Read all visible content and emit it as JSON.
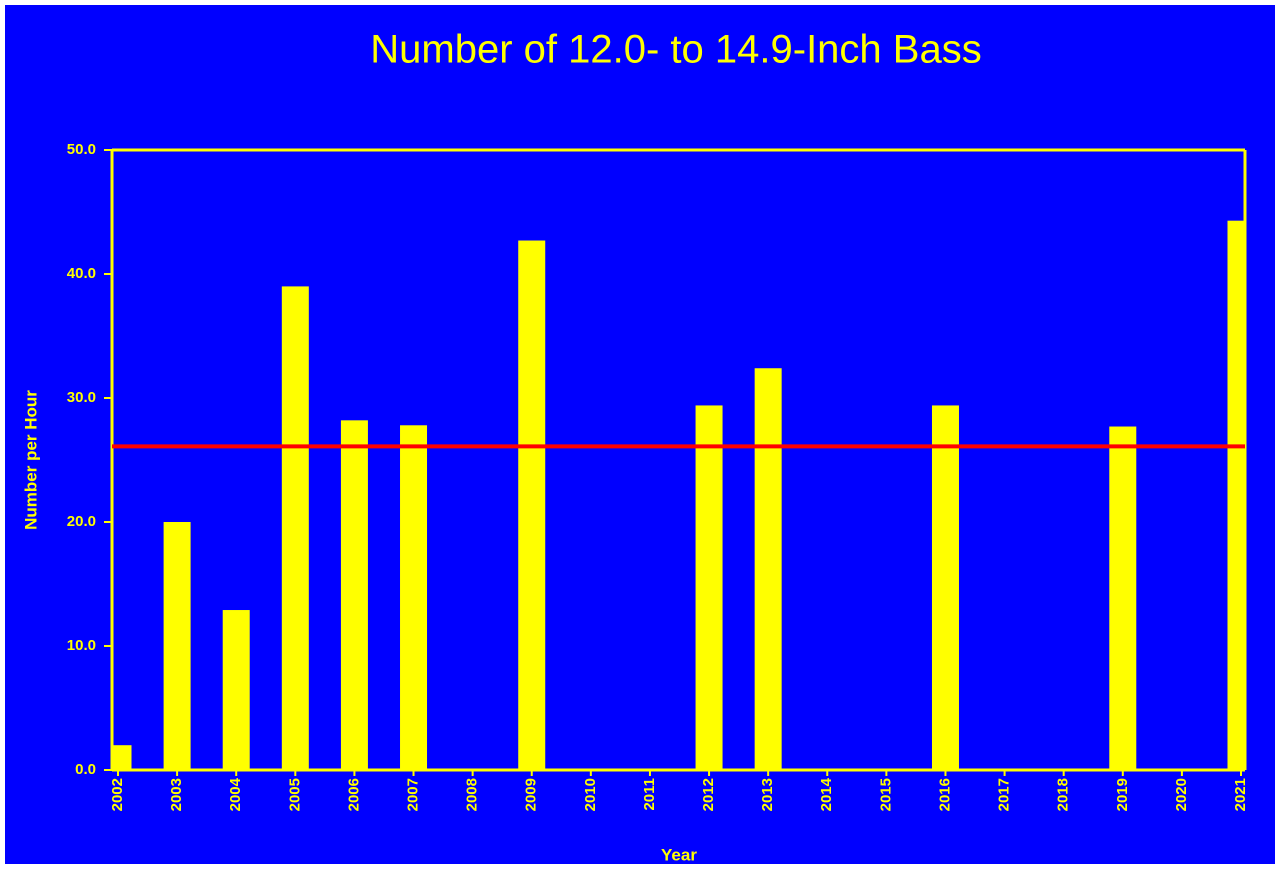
{
  "chart_data": {
    "type": "bar",
    "title": "Number of 12.0- to 14.9-Inch Bass",
    "x_label": "Year",
    "y_label": "Number per Hour",
    "categories": [
      "2002",
      "2003",
      "2004",
      "2005",
      "2006",
      "2007",
      "2008",
      "2009",
      "2010",
      "2011",
      "2012",
      "2013",
      "2014",
      "2015",
      "2016",
      "2017",
      "2018",
      "2019",
      "2020",
      "2021"
    ],
    "values": [
      2.0,
      20.0,
      12.9,
      39.0,
      28.2,
      27.8,
      null,
      42.7,
      null,
      null,
      29.4,
      32.4,
      null,
      null,
      29.4,
      null,
      null,
      27.7,
      null,
      44.3
    ],
    "color": "#ffff00",
    "reference_line": {
      "value": 26.1,
      "color": "#ff0000"
    },
    "ylim": [
      0,
      50
    ],
    "yticks": [
      {
        "value": 0,
        "label": "0.0"
      },
      {
        "value": 10,
        "label": "10.0"
      },
      {
        "value": 20,
        "label": "20.0"
      },
      {
        "value": 30,
        "label": "30.0"
      },
      {
        "value": 40,
        "label": "40.0"
      },
      {
        "value": 50,
        "label": "50.0"
      }
    ],
    "background": "#0000ff",
    "grid": false
  }
}
